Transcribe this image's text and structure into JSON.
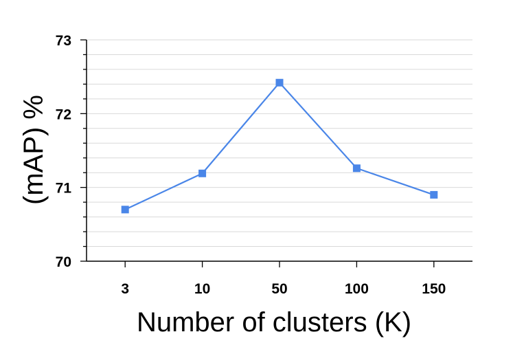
{
  "chart_data": {
    "type": "line",
    "title": "",
    "xlabel": "Number of clusters (K)",
    "ylabel": "(mAP) %",
    "categories": [
      "3",
      "10",
      "50",
      "100",
      "150"
    ],
    "series": [
      {
        "values": [
          70.7,
          71.19,
          72.42,
          71.26,
          70.9
        ]
      }
    ],
    "ylim": [
      70,
      73
    ],
    "yticks": [
      "70",
      "71",
      "72",
      "73"
    ],
    "grid": true,
    "colors": {
      "line": "#4a86e8",
      "marker": "#4a86e8",
      "grid": "#d9d9d9",
      "axis": "#000000"
    }
  }
}
